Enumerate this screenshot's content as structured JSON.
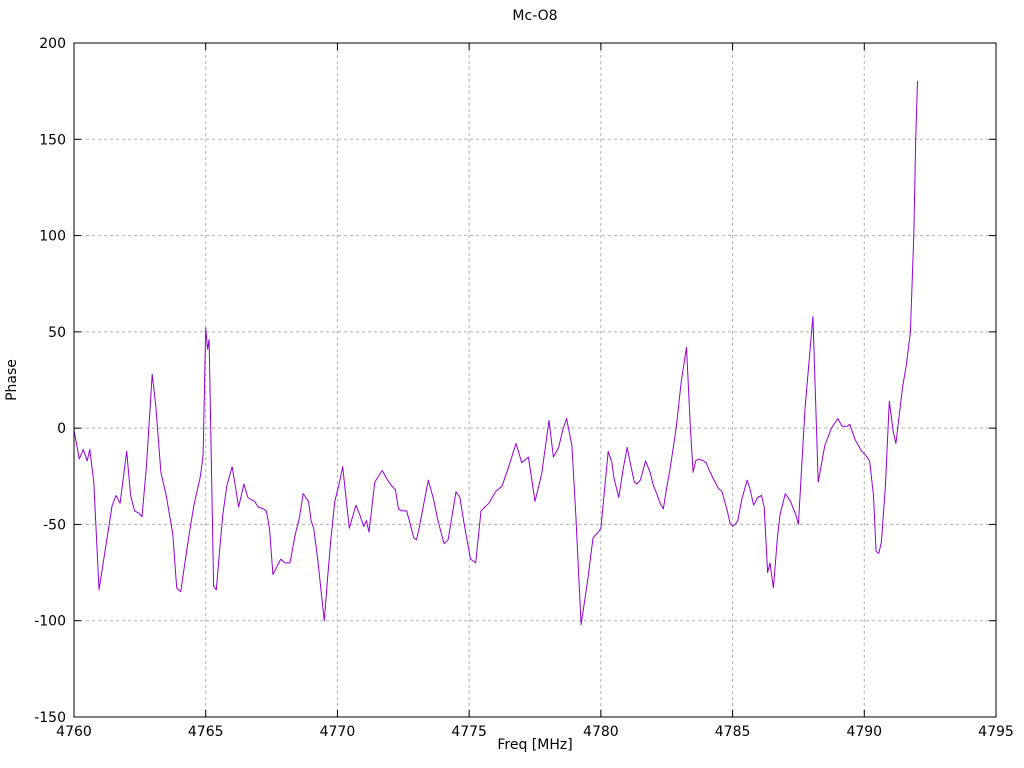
{
  "chart_data": {
    "type": "line",
    "title": "Mc-O8",
    "xlabel": "Freq [MHz]",
    "ylabel": "Phase",
    "xlim": [
      4760,
      4795
    ],
    "ylim": [
      -150,
      200
    ],
    "xticks": [
      4760,
      4765,
      4770,
      4775,
      4780,
      4785,
      4790,
      4795
    ],
    "yticks": [
      -150,
      -100,
      -50,
      0,
      50,
      100,
      150,
      200
    ],
    "grid": true,
    "grid_style": "dashed",
    "legend": "none",
    "line_color": "#9400D3",
    "background_color": "#ffffff",
    "border_color": "#000000",
    "grid_color": "#b0b0b0",
    "points": [
      [
        4760.0,
        -1
      ],
      [
        4760.2,
        -16
      ],
      [
        4760.35,
        -11
      ],
      [
        4760.5,
        -17
      ],
      [
        4760.6,
        -11
      ],
      [
        4760.75,
        -28
      ],
      [
        4760.95,
        -84
      ],
      [
        4761.2,
        -62
      ],
      [
        4761.45,
        -40
      ],
      [
        4761.6,
        -35
      ],
      [
        4761.75,
        -39
      ],
      [
        4762.0,
        -12
      ],
      [
        4762.15,
        -35
      ],
      [
        4762.3,
        -43
      ],
      [
        4762.45,
        -44
      ],
      [
        4762.58,
        -46
      ],
      [
        4762.75,
        -20
      ],
      [
        4762.97,
        28
      ],
      [
        4763.1,
        12
      ],
      [
        4763.3,
        -23
      ],
      [
        4763.5,
        -35
      ],
      [
        4763.75,
        -55
      ],
      [
        4763.9,
        -83
      ],
      [
        4764.05,
        -85
      ],
      [
        4764.2,
        -71
      ],
      [
        4764.35,
        -57
      ],
      [
        4764.55,
        -40
      ],
      [
        4764.65,
        -34
      ],
      [
        4764.8,
        -25
      ],
      [
        4764.9,
        -14
      ],
      [
        4765.0,
        52
      ],
      [
        4765.07,
        41
      ],
      [
        4765.13,
        46
      ],
      [
        4765.3,
        -82
      ],
      [
        4765.4,
        -84
      ],
      [
        4765.55,
        -60
      ],
      [
        4765.65,
        -45
      ],
      [
        4765.8,
        -30
      ],
      [
        4766.0,
        -20
      ],
      [
        4766.1,
        -28
      ],
      [
        4766.25,
        -41
      ],
      [
        4766.45,
        -29
      ],
      [
        4766.6,
        -36
      ],
      [
        4766.85,
        -38
      ],
      [
        4767.0,
        -41
      ],
      [
        4767.2,
        -42
      ],
      [
        4767.3,
        -43
      ],
      [
        4767.42,
        -52
      ],
      [
        4767.55,
        -76
      ],
      [
        4767.7,
        -72
      ],
      [
        4767.85,
        -68
      ],
      [
        4768.0,
        -70
      ],
      [
        4768.2,
        -70
      ],
      [
        4768.4,
        -55
      ],
      [
        4768.55,
        -47
      ],
      [
        4768.7,
        -34
      ],
      [
        4768.8,
        -36
      ],
      [
        4768.9,
        -38
      ],
      [
        4769.0,
        -48
      ],
      [
        4769.1,
        -52
      ],
      [
        4769.25,
        -68
      ],
      [
        4769.4,
        -87
      ],
      [
        4769.5,
        -100
      ],
      [
        4769.62,
        -79
      ],
      [
        4769.75,
        -58
      ],
      [
        4769.9,
        -38
      ],
      [
        4770.05,
        -30
      ],
      [
        4770.2,
        -20
      ],
      [
        4770.45,
        -52
      ],
      [
        4770.7,
        -40
      ],
      [
        4770.85,
        -45
      ],
      [
        4771.0,
        -51
      ],
      [
        4771.1,
        -48
      ],
      [
        4771.2,
        -54
      ],
      [
        4771.42,
        -28
      ],
      [
        4771.7,
        -22
      ],
      [
        4771.9,
        -27
      ],
      [
        4772.06,
        -30
      ],
      [
        4772.2,
        -32
      ],
      [
        4772.32,
        -42
      ],
      [
        4772.45,
        -43
      ],
      [
        4772.63,
        -43
      ],
      [
        4772.9,
        -57
      ],
      [
        4773.0,
        -58
      ],
      [
        4773.1,
        -52
      ],
      [
        4773.45,
        -27
      ],
      [
        4773.65,
        -37
      ],
      [
        4773.8,
        -47
      ],
      [
        4773.95,
        -55
      ],
      [
        4774.05,
        -60
      ],
      [
        4774.2,
        -58
      ],
      [
        4774.5,
        -33
      ],
      [
        4774.65,
        -36
      ],
      [
        4774.8,
        -49
      ],
      [
        4775.05,
        -68
      ],
      [
        4775.25,
        -70
      ],
      [
        4775.45,
        -43
      ],
      [
        4775.75,
        -39
      ],
      [
        4776.0,
        -33
      ],
      [
        4776.25,
        -30
      ],
      [
        4776.5,
        -20
      ],
      [
        4776.78,
        -8
      ],
      [
        4777.0,
        -18
      ],
      [
        4777.25,
        -15
      ],
      [
        4777.5,
        -38
      ],
      [
        4777.75,
        -24
      ],
      [
        4778.03,
        4
      ],
      [
        4778.2,
        -15
      ],
      [
        4778.4,
        -10
      ],
      [
        4778.55,
        -1
      ],
      [
        4778.7,
        5
      ],
      [
        4778.9,
        -9
      ],
      [
        4779.05,
        -45
      ],
      [
        4779.25,
        -102
      ],
      [
        4779.5,
        -79
      ],
      [
        4779.7,
        -57
      ],
      [
        4779.9,
        -54
      ],
      [
        4780.0,
        -52
      ],
      [
        4780.28,
        -12
      ],
      [
        4780.42,
        -18
      ],
      [
        4780.5,
        -26
      ],
      [
        4780.68,
        -36
      ],
      [
        4780.85,
        -21
      ],
      [
        4781.0,
        -10
      ],
      [
        4781.1,
        -17
      ],
      [
        4781.27,
        -28
      ],
      [
        4781.36,
        -29
      ],
      [
        4781.5,
        -27
      ],
      [
        4781.7,
        -17
      ],
      [
        4781.87,
        -23
      ],
      [
        4782.0,
        -30
      ],
      [
        4782.12,
        -34
      ],
      [
        4782.25,
        -39
      ],
      [
        4782.37,
        -42
      ],
      [
        4782.5,
        -31
      ],
      [
        4782.63,
        -21
      ],
      [
        4782.75,
        -10
      ],
      [
        4782.86,
        0
      ],
      [
        4783.05,
        24
      ],
      [
        4783.25,
        42
      ],
      [
        4783.4,
        0
      ],
      [
        4783.5,
        -23
      ],
      [
        4783.6,
        -17
      ],
      [
        4783.7,
        -16
      ],
      [
        4783.9,
        -17
      ],
      [
        4784.0,
        -18
      ],
      [
        4784.15,
        -23
      ],
      [
        4784.3,
        -27
      ],
      [
        4784.45,
        -31
      ],
      [
        4784.6,
        -33
      ],
      [
        4784.8,
        -43
      ],
      [
        4784.9,
        -49
      ],
      [
        4785.0,
        -51
      ],
      [
        4785.1,
        -50
      ],
      [
        4785.2,
        -48
      ],
      [
        4785.35,
        -37
      ],
      [
        4785.55,
        -27
      ],
      [
        4785.65,
        -31
      ],
      [
        4785.8,
        -40
      ],
      [
        4785.95,
        -36
      ],
      [
        4786.1,
        -35
      ],
      [
        4786.2,
        -41
      ],
      [
        4786.33,
        -75
      ],
      [
        4786.42,
        -70
      ],
      [
        4786.55,
        -83
      ],
      [
        4786.7,
        -57
      ],
      [
        4786.8,
        -45
      ],
      [
        4787.0,
        -34
      ],
      [
        4787.2,
        -38
      ],
      [
        4787.4,
        -45
      ],
      [
        4787.5,
        -50
      ],
      [
        4787.75,
        10
      ],
      [
        4788.05,
        58
      ],
      [
        4788.25,
        -28
      ],
      [
        4788.5,
        -9
      ],
      [
        4788.75,
        0
      ],
      [
        4789.0,
        5
      ],
      [
        4789.15,
        1
      ],
      [
        4789.35,
        1
      ],
      [
        4789.45,
        2
      ],
      [
        4789.65,
        -6
      ],
      [
        4789.9,
        -12
      ],
      [
        4790.05,
        -14
      ],
      [
        4790.2,
        -17
      ],
      [
        4790.35,
        -35
      ],
      [
        4790.45,
        -64
      ],
      [
        4790.55,
        -65
      ],
      [
        4790.65,
        -59
      ],
      [
        4790.8,
        -30
      ],
      [
        4790.95,
        14
      ],
      [
        4791.1,
        -2
      ],
      [
        4791.2,
        -8
      ],
      [
        4791.45,
        21
      ],
      [
        4791.6,
        33
      ],
      [
        4791.75,
        50
      ],
      [
        4791.88,
        100
      ],
      [
        4791.95,
        150
      ],
      [
        4792.02,
        180
      ]
    ]
  }
}
